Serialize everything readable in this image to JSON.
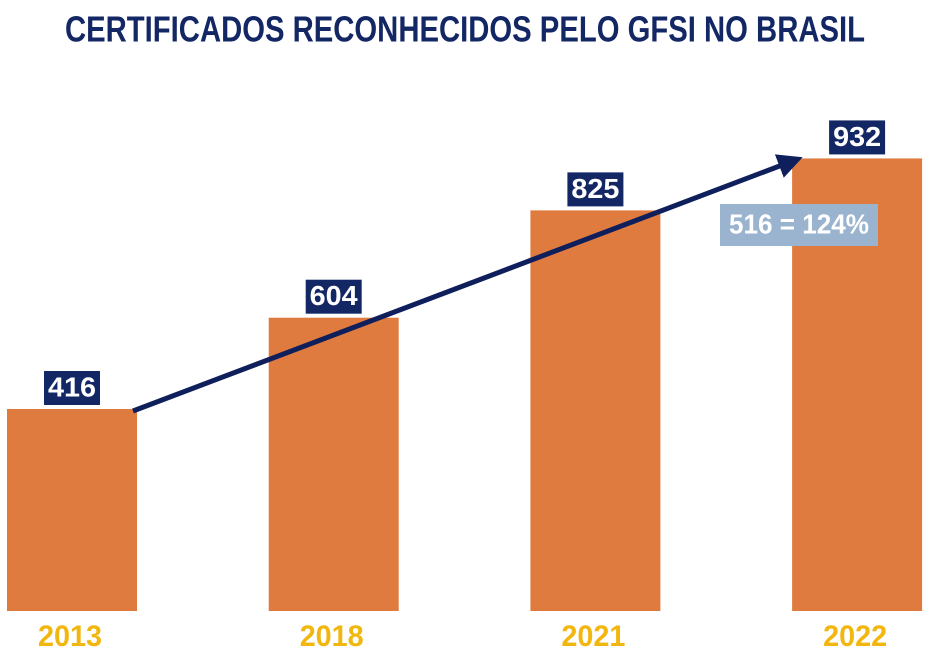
{
  "chart_data": {
    "type": "bar",
    "title": "CERTIFICADOS RECONHECIDOS PELO GFSI NO BRASIL",
    "categories": [
      "2013",
      "2018",
      "2021",
      "2022"
    ],
    "values": [
      416,
      604,
      825,
      932
    ],
    "color": "#e07b3f",
    "annotation": "516 = 124%"
  }
}
